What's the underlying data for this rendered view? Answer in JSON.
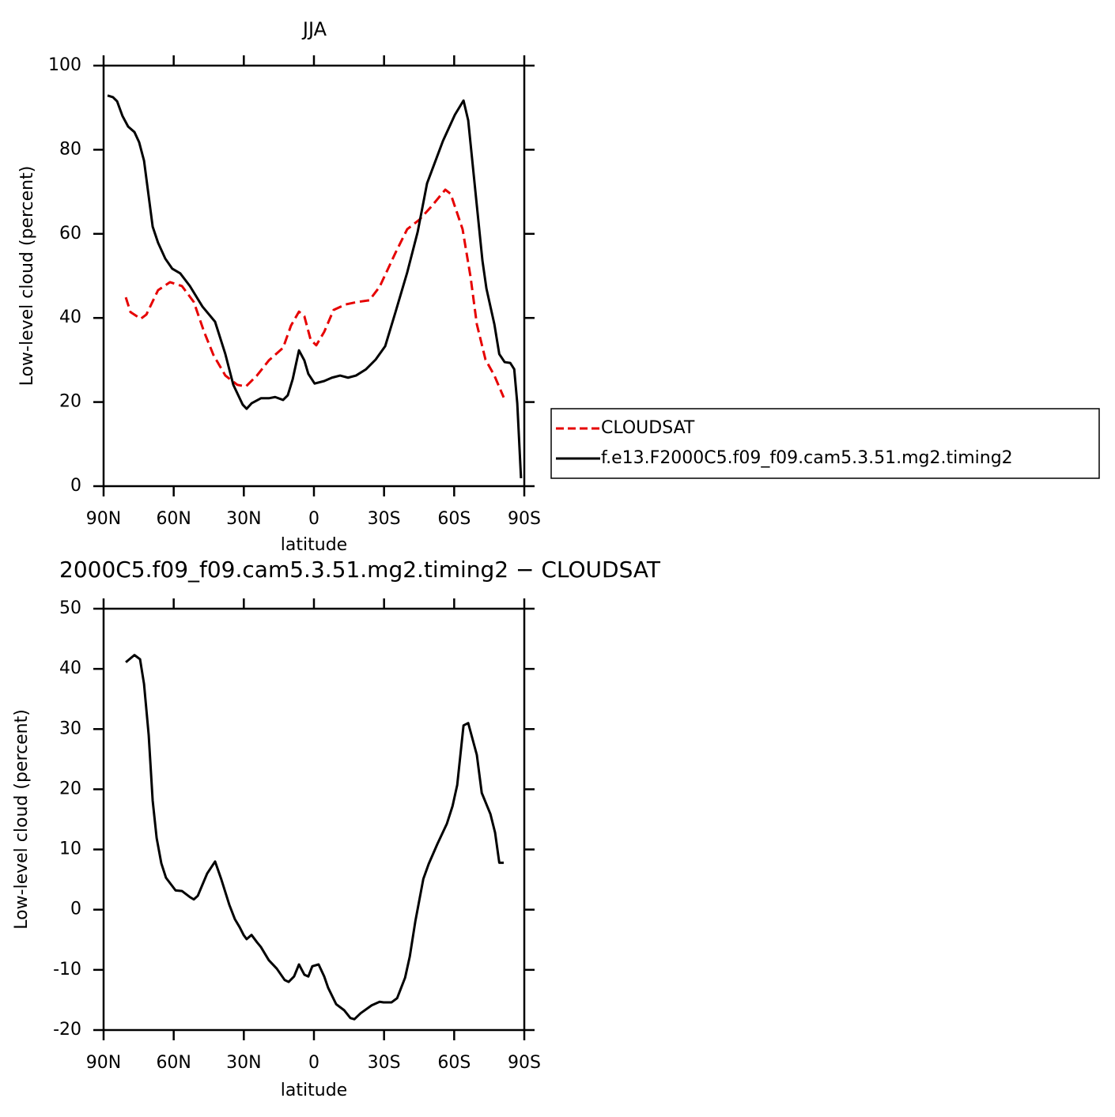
{
  "chart_data": [
    {
      "type": "line",
      "title": "JJA",
      "xlabel": "latitude",
      "ylabel": "Low-level cloud (percent)",
      "xlim": [
        90,
        -90
      ],
      "ylim": [
        0,
        100
      ],
      "xticks": [
        {
          "value": 90,
          "label": "90N"
        },
        {
          "value": 60,
          "label": "60N"
        },
        {
          "value": 30,
          "label": "30N"
        },
        0,
        {
          "value": -30,
          "label": "30S"
        },
        {
          "value": -60,
          "label": "60S"
        },
        {
          "value": -90,
          "label": "90S"
        }
      ],
      "yticks": [
        0,
        20,
        40,
        60,
        80,
        100
      ],
      "legend": "right",
      "series": [
        {
          "name": "CLOUDSAT",
          "color": "#e60000",
          "line_style": "dashed",
          "x": [
            80.5,
            78.5,
            74.1,
            71.7,
            66.7,
            61.6,
            56.5,
            51.4,
            47,
            43,
            37.9,
            32.8,
            29.1,
            24.4,
            19.3,
            13.2,
            9.8,
            6.4,
            4.1,
            1.4,
            -1,
            -4.4,
            -8.4,
            -13.5,
            -18.6,
            -23.7,
            -28.1,
            -34.9,
            -39.9,
            -45,
            -50.1,
            -56.2,
            -58.5,
            -63.6,
            -67,
            -69.7,
            -73.4,
            -77.2,
            -81.2
          ],
          "values": [
            44.9,
            41.4,
            39.8,
            40.8,
            46.6,
            48.5,
            47.6,
            43.8,
            36.7,
            31.2,
            26.3,
            24.1,
            23.7,
            26.3,
            29.9,
            32.9,
            38.2,
            41.5,
            40.4,
            34.8,
            33.5,
            36.7,
            41.9,
            43.2,
            43.8,
            44.2,
            47.4,
            55.5,
            61.1,
            63.3,
            66.4,
            70.5,
            69.5,
            61.1,
            49.8,
            38.5,
            30.1,
            26.3,
            21.1
          ]
        },
        {
          "name": "f.e13.F2000C5.f09_f09.cam5.3.51.mg2.timing2",
          "color": "#000000",
          "line_style": "solid",
          "x": [
            88.3,
            86,
            84.2,
            81.9,
            79.5,
            76.8,
            74.8,
            72.7,
            69,
            66.7,
            63.6,
            60.6,
            57.2,
            53.1,
            47.7,
            42.3,
            37.9,
            34.5,
            30.5,
            28.8,
            26.7,
            22.7,
            19.3,
            16.6,
            13.2,
            11.2,
            9.1,
            6.4,
            4.1,
            2.4,
            -0.3,
            -4.4,
            -7.7,
            -11.2,
            -14.6,
            -18,
            -22.3,
            -26.4,
            -30.5,
            -34.9,
            -39.9,
            -44.4,
            -48.4,
            -55.2,
            -60.3,
            -64,
            -66,
            -69.7,
            -72.1,
            -73.8,
            -77.2,
            -79.3,
            -81.6,
            -84,
            -85.7,
            -87,
            -88.6
          ],
          "values": [
            92.9,
            92.5,
            91.5,
            88,
            85.5,
            84.2,
            81.8,
            77.4,
            61.7,
            57.9,
            54.1,
            51.7,
            50.6,
            47.6,
            42.7,
            39.1,
            31.4,
            24.1,
            19.4,
            18.4,
            19.7,
            20.9,
            20.9,
            21.2,
            20.5,
            21.6,
            25.4,
            32.3,
            29.9,
            26.7,
            24.4,
            25,
            25.8,
            26.3,
            25.8,
            26.3,
            27.8,
            30.1,
            33.3,
            41.4,
            50.8,
            60.5,
            72,
            82.1,
            88.3,
            91.7,
            87,
            66.7,
            53.6,
            47,
            38.5,
            31.4,
            29.5,
            29.3,
            27.8,
            19.7,
            1.9
          ]
        }
      ]
    },
    {
      "type": "line",
      "title": "2000C5.f09_f09.cam5.3.51.mg2.timing2 − CLOUDSAT",
      "xlabel": "latitude",
      "ylabel": "Low-level cloud (percent)",
      "xlim": [
        90,
        -90
      ],
      "ylim": [
        -20,
        50
      ],
      "xticks": [
        {
          "value": 90,
          "label": "90N"
        },
        {
          "value": 60,
          "label": "60N"
        },
        {
          "value": 30,
          "label": "30N"
        },
        0,
        {
          "value": -30,
          "label": "30S"
        },
        {
          "value": -60,
          "label": "60S"
        },
        {
          "value": -90,
          "label": "90S"
        }
      ],
      "yticks": [
        -20,
        -10,
        0,
        10,
        20,
        30,
        40,
        50
      ],
      "series": [
        {
          "color": "#000000",
          "line_style": "solid",
          "x": [
            80.5,
            76.8,
            74.4,
            72.7,
            70.7,
            69,
            67.3,
            65.3,
            63.3,
            59.2,
            56.5,
            53.1,
            51.4,
            49.7,
            45.7,
            42.3,
            39.6,
            36.2,
            33.8,
            31.8,
            30.1,
            28.8,
            26.7,
            24.4,
            22.7,
            19.3,
            15.9,
            12.5,
            10.8,
            8.5,
            6.4,
            4.1,
            2.4,
            0.7,
            -2,
            -4.4,
            -6.1,
            -9.5,
            -12.9,
            -15.6,
            -17.3,
            -20,
            -24.7,
            -28.1,
            -29.8,
            -33.2,
            -35.6,
            -39,
            -41,
            -43.4,
            -46.8,
            -49.1,
            -52.8,
            -56.9,
            -59.3,
            -61.3,
            -64,
            -66,
            -69.7,
            -71.8,
            -75.5,
            -77.5,
            -79.3,
            -81.2
          ],
          "values": [
            41.1,
            42.3,
            41.6,
            37.5,
            29,
            18.1,
            11.9,
            7.7,
            5.3,
            3.2,
            3.1,
            2.1,
            1.7,
            2.3,
            6,
            8,
            5,
            0.8,
            -1.6,
            -2.9,
            -4.2,
            -4.9,
            -4.2,
            -5.4,
            -6.2,
            -8.4,
            -9.8,
            -11.7,
            -12,
            -11.1,
            -9.1,
            -10.8,
            -11.1,
            -9.4,
            -9.1,
            -11.1,
            -13,
            -15.7,
            -16.7,
            -18,
            -18.2,
            -17.2,
            -15.9,
            -15.3,
            -15.4,
            -15.4,
            -14.7,
            -11.3,
            -7.8,
            -1.9,
            5.1,
            7.6,
            10.9,
            14.3,
            17.2,
            20.7,
            30.6,
            31,
            25.7,
            19.4,
            15.9,
            12.8,
            7.8,
            7.8
          ]
        }
      ]
    }
  ]
}
